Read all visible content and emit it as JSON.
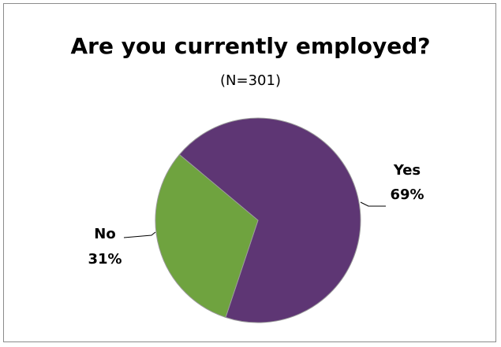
{
  "chart_data": {
    "type": "pie",
    "title": "Are you currently employed?",
    "subtitle": "(N=301)",
    "slices": [
      {
        "label": "Yes",
        "percent_label": "69%",
        "value": 69,
        "color": "#5e3674"
      },
      {
        "label": "No",
        "percent_label": "31%",
        "value": 31,
        "color": "#6fa33f"
      }
    ],
    "legend": "none",
    "slice_border_color": "#9a9a9a",
    "frame_border_color": "#8c8c8c"
  }
}
